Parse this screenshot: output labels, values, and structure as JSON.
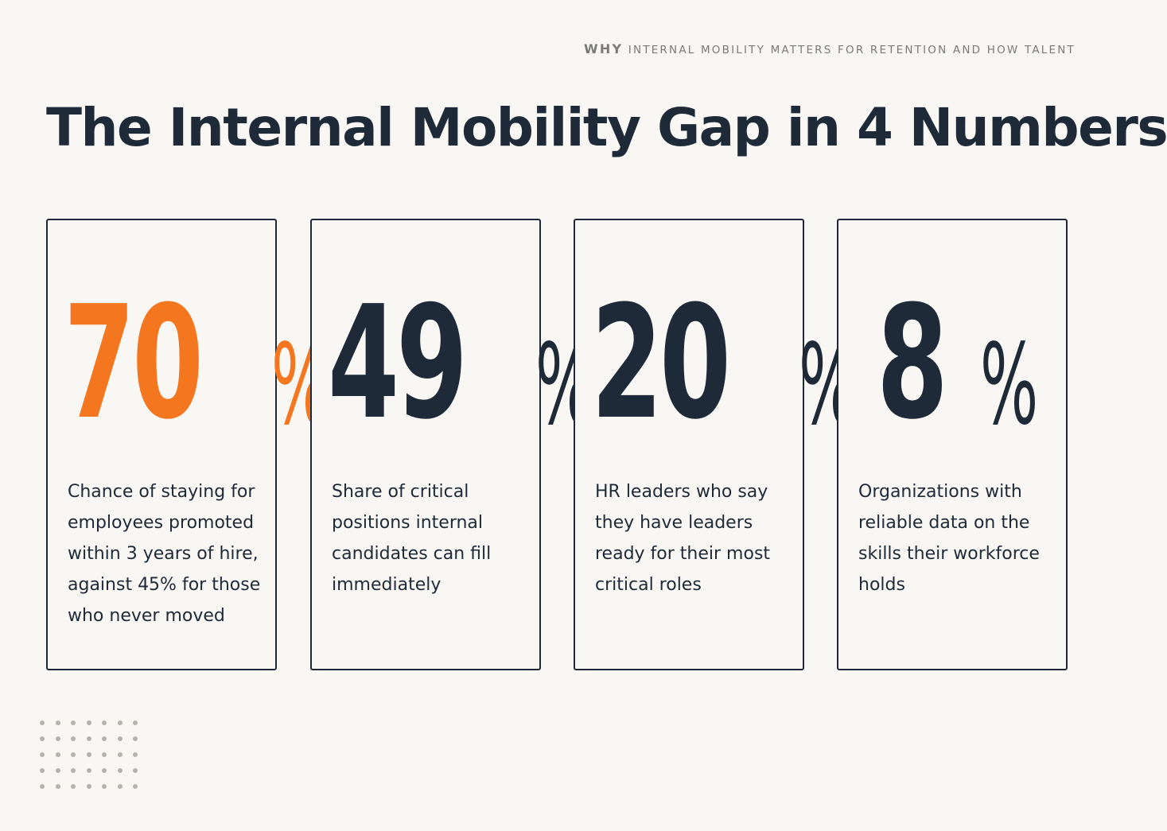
{
  "eyebrow": {
    "lead": "WHY",
    "rest": "INTERNAL MOBILITY MATTERS FOR RETENTION AND HOW TALENT"
  },
  "title": "The Internal Mobility Gap in 4 Numbers",
  "colors": {
    "background": "#f8f7f3",
    "ink": "#1e2a38",
    "accent": "#f47720",
    "dots": "#b5b3ae"
  },
  "stats": [
    {
      "number": "70",
      "unit": "%",
      "accent": true,
      "description": "Chance of staying for employees promoted within 3 years of hire, against 45% for those who never moved"
    },
    {
      "number": "49",
      "unit": "%",
      "accent": false,
      "description": "Share of critical positions internal candidates can fill immediately"
    },
    {
      "number": "20",
      "unit": "%",
      "accent": false,
      "description": "HR leaders who say they have leaders ready for their most critical roles"
    },
    {
      "number": "8",
      "unit": "%",
      "accent": false,
      "description": "Organizations with reliable data on the skills their workforce holds"
    }
  ]
}
